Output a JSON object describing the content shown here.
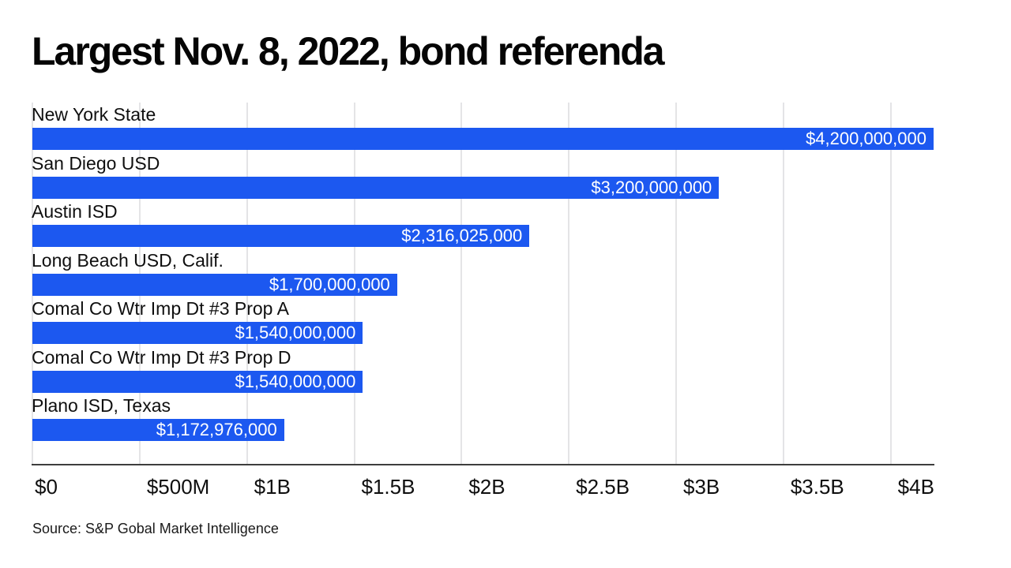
{
  "title": "Largest Nov. 8, 2022, bond referenda",
  "source": "Source: S&P Gobal Market Intelligence",
  "colors": {
    "bar": "#1c58f0",
    "bar_value_text": "#ffffff",
    "gridline": "#e4e4e6",
    "axis_line": "#3d3d3d",
    "text": "#0f0f0f",
    "background": "#ffffff"
  },
  "chart_data": {
    "type": "bar",
    "orientation": "horizontal",
    "title": "Largest Nov. 8, 2022, bond referenda",
    "categories": [
      "New York State",
      "San Diego USD",
      "Austin ISD",
      "Long Beach USD, Calif.",
      "Comal Co Wtr Imp Dt #3 Prop A",
      "Comal Co Wtr Imp Dt #3 Prop D",
      "Plano ISD, Texas"
    ],
    "values": [
      4200000000,
      3200000000,
      2316025000,
      1700000000,
      1540000000,
      1540000000,
      1172976000
    ],
    "value_labels": [
      "$4,200,000,000",
      "$3,200,000,000",
      "$2,316,025,000",
      "$1,700,000,000",
      "$1,540,000,000",
      "$1,540,000,000",
      "$1,172,976,000"
    ],
    "xlabel": "",
    "ylabel": "",
    "xlim": [
      0,
      4200000000
    ],
    "x_ticks": [
      {
        "value": 0,
        "label": "$0"
      },
      {
        "value": 500000000,
        "label": "$500M"
      },
      {
        "value": 1000000000,
        "label": "$1B"
      },
      {
        "value": 1500000000,
        "label": "$1.5B"
      },
      {
        "value": 2000000000,
        "label": "$2B"
      },
      {
        "value": 2500000000,
        "label": "$2.5B"
      },
      {
        "value": 3000000000,
        "label": "$3B"
      },
      {
        "value": 3500000000,
        "label": "$3.5B"
      },
      {
        "value": 4000000000,
        "label": "$4B"
      }
    ],
    "grid": "vertical",
    "legend": "none",
    "source": "Source: S&P Gobal Market Intelligence"
  }
}
